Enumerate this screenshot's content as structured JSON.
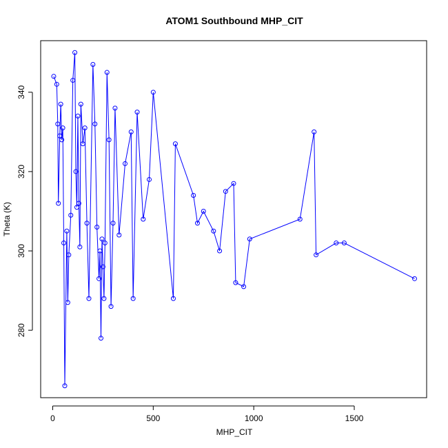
{
  "chart_data": {
    "type": "line",
    "title": "ATOM1 Southbound MHP_CIT",
    "xlabel": "MHP_CIT",
    "ylabel": "Theta (K)",
    "xlim": [
      -60,
      1860
    ],
    "ylim": [
      263,
      353
    ],
    "xticks": [
      0,
      500,
      1000,
      1500
    ],
    "yticks": [
      280,
      300,
      320,
      340
    ],
    "grid": false,
    "color": "#0000FF",
    "marker": "open-circle",
    "series": [
      {
        "x": [
          5,
          20,
          25,
          28,
          35,
          40,
          45,
          50,
          55,
          60,
          70,
          75,
          80,
          90,
          100,
          110,
          115,
          120,
          125,
          130,
          135,
          140,
          150,
          160,
          170,
          180,
          200,
          210,
          220,
          230,
          235,
          240,
          245,
          250,
          255,
          260,
          270,
          280,
          290,
          300,
          310,
          330,
          360,
          390,
          400,
          420,
          450,
          480,
          500,
          600,
          610,
          700,
          720,
          750,
          800,
          830,
          860,
          900,
          910,
          950,
          980,
          1230,
          1300,
          1310,
          1410,
          1450,
          1800
        ],
        "y": [
          344,
          342,
          332,
          312,
          329,
          337,
          328,
          331,
          302,
          266,
          305,
          287,
          299,
          309,
          343,
          350,
          320,
          311,
          334,
          312,
          301,
          337,
          327,
          331,
          307,
          288,
          347,
          332,
          306,
          293,
          300,
          278,
          303,
          296,
          288,
          302,
          345,
          328,
          286,
          307,
          336,
          304,
          322,
          330,
          288,
          335,
          308,
          318,
          340,
          288,
          327,
          314,
          307,
          310,
          305,
          300,
          315,
          317,
          292,
          291,
          303,
          308,
          330,
          299,
          302,
          302,
          293
        ]
      }
    ]
  }
}
